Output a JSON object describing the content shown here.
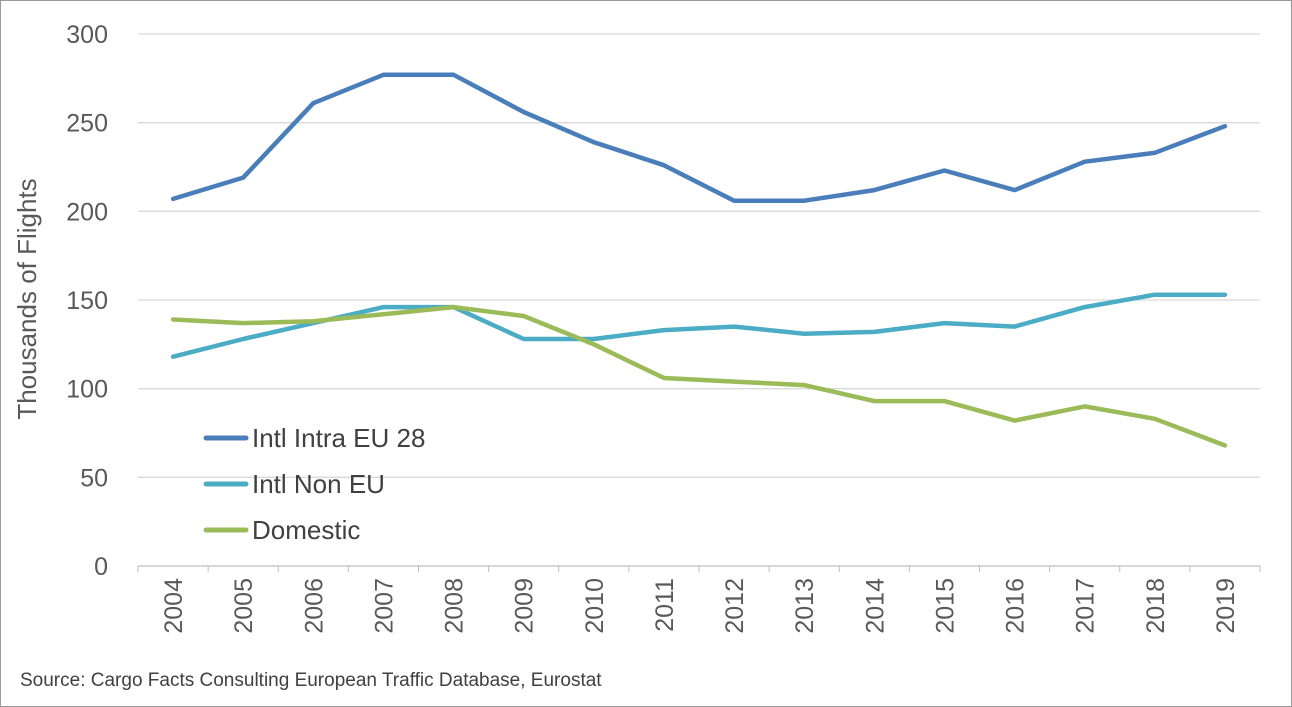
{
  "chart_data": {
    "type": "line",
    "ylabel": "Thousands of Flights",
    "ylim": [
      0,
      300
    ],
    "yticks": [
      "0",
      "50",
      "100",
      "150",
      "200",
      "250",
      "300"
    ],
    "grid": true,
    "legend_position": "left",
    "categories": [
      "2004",
      "2005",
      "2006",
      "2007",
      "2008",
      "2009",
      "2010",
      "2011",
      "2012",
      "2013",
      "2014",
      "2015",
      "2016",
      "2017",
      "2018",
      "2019"
    ],
    "series": [
      {
        "name": "Intl Intra EU 28",
        "color": "#4a7ebb",
        "values": [
          207,
          219,
          261,
          277,
          277,
          256,
          239,
          226,
          206,
          206,
          212,
          223,
          212,
          228,
          233,
          248
        ]
      },
      {
        "name": "Intl Non EU",
        "color": "#4bacc6",
        "values": [
          118,
          128,
          137,
          146,
          146,
          128,
          128,
          133,
          135,
          131,
          132,
          137,
          135,
          146,
          153,
          153
        ]
      },
      {
        "name": "Domestic",
        "color": "#9bbb59",
        "values": [
          139,
          137,
          138,
          142,
          146,
          141,
          125,
          106,
          104,
          102,
          93,
          93,
          82,
          90,
          83,
          68
        ]
      }
    ]
  },
  "source": "Source: Cargo Facts Consulting European Traffic Database, Eurostat"
}
